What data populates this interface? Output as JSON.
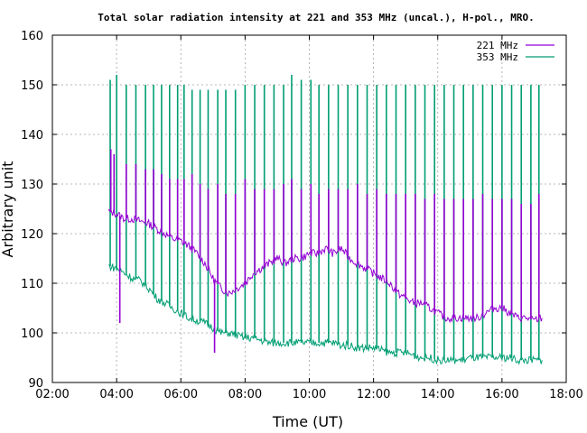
{
  "chart_data": {
    "type": "line",
    "title": "Total solar radiation intensity at 221 and 353 MHz (uncal.), H-pol., MRO.",
    "xlabel": "Time (UT)",
    "ylabel": "Arbitrary unit",
    "xlim": [
      2,
      18
    ],
    "ylim": [
      90,
      160
    ],
    "xticks": [
      "02:00",
      "04:00",
      "06:00",
      "08:00",
      "10:00",
      "12:00",
      "14:00",
      "16:00",
      "18:00"
    ],
    "yticks": [
      90,
      100,
      110,
      120,
      130,
      140,
      150,
      160
    ],
    "grid": true,
    "legend_position": "top-right",
    "series": [
      {
        "name": "221 MHz",
        "color": "#9400d3",
        "x": [
          3.75,
          4.0,
          4.25,
          4.5,
          4.75,
          5.0,
          5.25,
          5.5,
          5.75,
          6.0,
          6.25,
          6.5,
          6.75,
          7.0,
          7.25,
          7.5,
          7.75,
          8.0,
          8.25,
          8.5,
          8.75,
          9.0,
          9.25,
          9.5,
          9.75,
          10.0,
          10.25,
          10.5,
          10.75,
          11.0,
          11.25,
          11.5,
          11.75,
          12.0,
          12.25,
          12.5,
          12.75,
          13.0,
          13.25,
          13.5,
          13.75,
          14.0,
          14.25,
          14.5,
          14.75,
          15.0,
          15.25,
          15.5,
          15.75,
          16.0,
          16.25,
          16.5,
          16.75,
          17.0,
          17.25
        ],
        "y": [
          124.5,
          124,
          123,
          123,
          122.5,
          122,
          121,
          120,
          119,
          118.5,
          117.5,
          116,
          114,
          111,
          109,
          108,
          109,
          110,
          112,
          113,
          114,
          115,
          114,
          115,
          115,
          116,
          116,
          117,
          116,
          117,
          115,
          114,
          113,
          112,
          111,
          110,
          108,
          107,
          106,
          106,
          105,
          104,
          103,
          103,
          103,
          103,
          103,
          104,
          105,
          105,
          104,
          103,
          103,
          102.5,
          103
        ],
        "spikes": [
          {
            "x": 3.82,
            "top": 137
          },
          {
            "x": 3.92,
            "top": 136
          },
          {
            "x": 4.1,
            "top": 102
          },
          {
            "x": 4.3,
            "top": 134
          },
          {
            "x": 4.6,
            "top": 134
          },
          {
            "x": 4.9,
            "top": 133
          },
          {
            "x": 5.15,
            "top": 133
          },
          {
            "x": 5.4,
            "top": 132
          },
          {
            "x": 5.65,
            "top": 131
          },
          {
            "x": 5.9,
            "top": 131
          },
          {
            "x": 6.1,
            "top": 131
          },
          {
            "x": 6.35,
            "top": 132
          },
          {
            "x": 6.6,
            "top": 130
          },
          {
            "x": 6.85,
            "top": 129
          },
          {
            "x": 7.05,
            "top": 96
          },
          {
            "x": 7.15,
            "top": 130
          },
          {
            "x": 7.4,
            "top": 128
          },
          {
            "x": 7.7,
            "top": 128
          },
          {
            "x": 8.0,
            "top": 131
          },
          {
            "x": 8.3,
            "top": 129
          },
          {
            "x": 8.6,
            "top": 129
          },
          {
            "x": 8.9,
            "top": 129
          },
          {
            "x": 9.2,
            "top": 130
          },
          {
            "x": 9.45,
            "top": 131
          },
          {
            "x": 9.75,
            "top": 129
          },
          {
            "x": 10.05,
            "top": 130
          },
          {
            "x": 10.3,
            "top": 128
          },
          {
            "x": 10.6,
            "top": 129
          },
          {
            "x": 10.9,
            "top": 129
          },
          {
            "x": 11.2,
            "top": 129
          },
          {
            "x": 11.5,
            "top": 130
          },
          {
            "x": 11.8,
            "top": 128
          },
          {
            "x": 12.1,
            "top": 129
          },
          {
            "x": 12.4,
            "top": 128
          },
          {
            "x": 12.7,
            "top": 128
          },
          {
            "x": 13.0,
            "top": 128
          },
          {
            "x": 13.3,
            "top": 128
          },
          {
            "x": 13.6,
            "top": 127
          },
          {
            "x": 13.9,
            "top": 128
          },
          {
            "x": 14.2,
            "top": 127
          },
          {
            "x": 14.5,
            "top": 127
          },
          {
            "x": 14.8,
            "top": 127
          },
          {
            "x": 15.1,
            "top": 127
          },
          {
            "x": 15.4,
            "top": 128
          },
          {
            "x": 15.7,
            "top": 127
          },
          {
            "x": 16.0,
            "top": 127
          },
          {
            "x": 16.3,
            "top": 127
          },
          {
            "x": 16.6,
            "top": 126
          },
          {
            "x": 16.9,
            "top": 126
          },
          {
            "x": 17.15,
            "top": 128
          }
        ]
      },
      {
        "name": "353 MHz",
        "color": "#009e73",
        "x": [
          3.75,
          4.0,
          4.25,
          4.5,
          4.75,
          5.0,
          5.25,
          5.5,
          5.75,
          6.0,
          6.25,
          6.5,
          6.75,
          7.0,
          7.25,
          7.5,
          7.75,
          8.0,
          8.25,
          8.5,
          8.75,
          9.0,
          9.25,
          9.5,
          9.75,
          10.0,
          10.25,
          10.5,
          10.75,
          11.0,
          11.25,
          11.5,
          11.75,
          12.0,
          12.25,
          12.5,
          12.75,
          13.0,
          13.25,
          13.5,
          13.75,
          14.0,
          14.25,
          14.5,
          14.75,
          15.0,
          15.25,
          15.5,
          15.75,
          16.0,
          16.25,
          16.5,
          16.75,
          17.0,
          17.25
        ],
        "y": [
          113.5,
          113,
          112,
          111,
          110.5,
          109,
          107,
          106,
          105,
          104,
          103,
          102.5,
          102,
          101,
          100,
          100,
          99.5,
          99,
          99,
          98.5,
          98,
          98,
          98,
          98,
          98,
          98,
          98,
          98,
          98,
          97.5,
          97.5,
          97,
          97,
          97,
          96.5,
          96,
          96,
          96,
          95.5,
          95,
          95,
          94.5,
          94.5,
          94.5,
          94.5,
          95,
          95,
          95,
          95,
          95,
          95,
          94.5,
          94.5,
          94.5,
          94.5
        ],
        "spikes": [
          {
            "x": 3.8,
            "top": 151
          },
          {
            "x": 4.0,
            "top": 152
          },
          {
            "x": 4.3,
            "top": 150
          },
          {
            "x": 4.6,
            "top": 150
          },
          {
            "x": 4.9,
            "top": 150
          },
          {
            "x": 5.15,
            "top": 150
          },
          {
            "x": 5.4,
            "top": 150
          },
          {
            "x": 5.65,
            "top": 150
          },
          {
            "x": 5.9,
            "top": 150
          },
          {
            "x": 6.1,
            "top": 150
          },
          {
            "x": 6.35,
            "top": 149
          },
          {
            "x": 6.6,
            "top": 149
          },
          {
            "x": 6.85,
            "top": 149
          },
          {
            "x": 7.15,
            "top": 149
          },
          {
            "x": 7.4,
            "top": 149
          },
          {
            "x": 7.7,
            "top": 149
          },
          {
            "x": 8.0,
            "top": 150
          },
          {
            "x": 8.3,
            "top": 150
          },
          {
            "x": 8.6,
            "top": 150
          },
          {
            "x": 8.9,
            "top": 150
          },
          {
            "x": 9.2,
            "top": 150
          },
          {
            "x": 9.45,
            "top": 152
          },
          {
            "x": 9.75,
            "top": 151
          },
          {
            "x": 10.05,
            "top": 151
          },
          {
            "x": 10.3,
            "top": 150
          },
          {
            "x": 10.6,
            "top": 150
          },
          {
            "x": 10.9,
            "top": 150
          },
          {
            "x": 11.2,
            "top": 150
          },
          {
            "x": 11.5,
            "top": 150
          },
          {
            "x": 11.8,
            "top": 150
          },
          {
            "x": 12.1,
            "top": 150
          },
          {
            "x": 12.4,
            "top": 150
          },
          {
            "x": 12.7,
            "top": 150
          },
          {
            "x": 13.0,
            "top": 150
          },
          {
            "x": 13.3,
            "top": 150
          },
          {
            "x": 13.6,
            "top": 150
          },
          {
            "x": 13.9,
            "top": 150
          },
          {
            "x": 14.2,
            "top": 150
          },
          {
            "x": 14.5,
            "top": 150
          },
          {
            "x": 14.8,
            "top": 150
          },
          {
            "x": 15.1,
            "top": 150
          },
          {
            "x": 15.4,
            "top": 150
          },
          {
            "x": 15.7,
            "top": 150
          },
          {
            "x": 16.0,
            "top": 150
          },
          {
            "x": 16.3,
            "top": 150
          },
          {
            "x": 16.6,
            "top": 150
          },
          {
            "x": 16.9,
            "top": 150
          },
          {
            "x": 17.15,
            "top": 150
          }
        ]
      }
    ]
  }
}
